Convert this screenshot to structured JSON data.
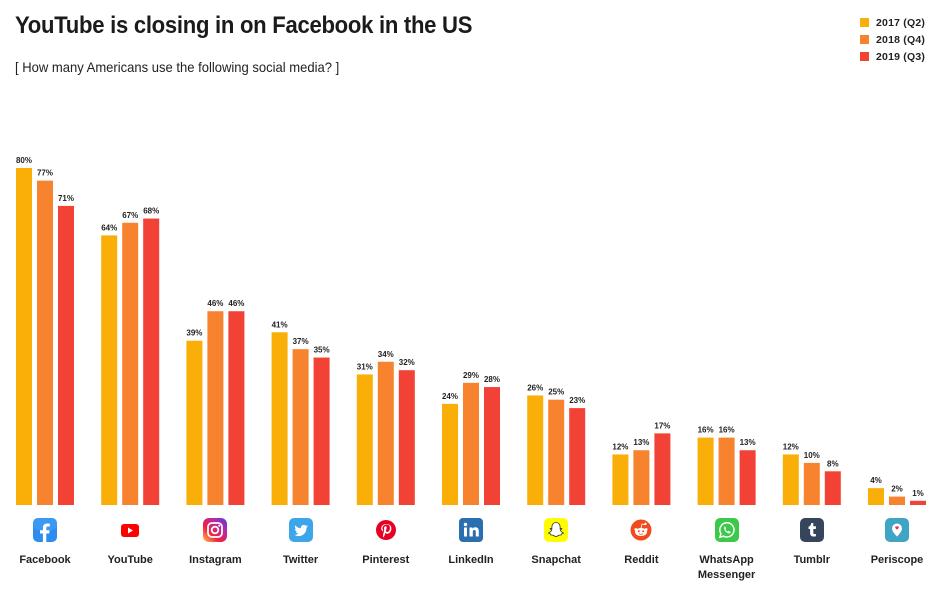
{
  "header": {
    "title": "YouTube is closing in on Facebook in the US",
    "subtitle": "[ How many Americans use the following social media? ]"
  },
  "chart_data": {
    "type": "bar",
    "title": "YouTube is closing in on Facebook in the US",
    "subtitle": "[ How many Americans use the following social media? ]",
    "xlabel": "",
    "ylabel": "",
    "ylim": [
      0,
      80
    ],
    "grid": false,
    "legend_position": "top-right",
    "value_suffix": "%",
    "categories": [
      "Facebook",
      "YouTube",
      "Instagram",
      "Twitter",
      "Pinterest",
      "LinkedIn",
      "Snapchat",
      "Reddit",
      "WhatsApp Messenger",
      "Tumblr",
      "Periscope"
    ],
    "category_icons": [
      "facebook-icon",
      "youtube-icon",
      "instagram-icon",
      "twitter-icon",
      "pinterest-icon",
      "linkedin-icon",
      "snapchat-icon",
      "reddit-icon",
      "whatsapp-icon",
      "tumblr-icon",
      "periscope-icon"
    ],
    "series": [
      {
        "name": "2017 (Q2)",
        "color": "#F9AE08",
        "values": [
          80,
          64,
          39,
          41,
          31,
          24,
          26,
          12,
          16,
          12,
          4
        ]
      },
      {
        "name": "2018 (Q4)",
        "color": "#F7832F",
        "values": [
          77,
          67,
          46,
          37,
          34,
          29,
          25,
          13,
          16,
          10,
          2
        ]
      },
      {
        "name": "2019 (Q3)",
        "color": "#F24135",
        "values": [
          71,
          68,
          46,
          35,
          32,
          28,
          23,
          17,
          13,
          8,
          1
        ]
      }
    ]
  },
  "category_labels": [
    [
      "Facebook"
    ],
    [
      "YouTube"
    ],
    [
      "Instagram"
    ],
    [
      "Twitter"
    ],
    [
      "Pinterest"
    ],
    [
      "LinkedIn"
    ],
    [
      "Snapchat"
    ],
    [
      "Reddit"
    ],
    [
      "WhatsApp",
      "Messenger"
    ],
    [
      "Tumblr"
    ],
    [
      "Periscope"
    ]
  ]
}
